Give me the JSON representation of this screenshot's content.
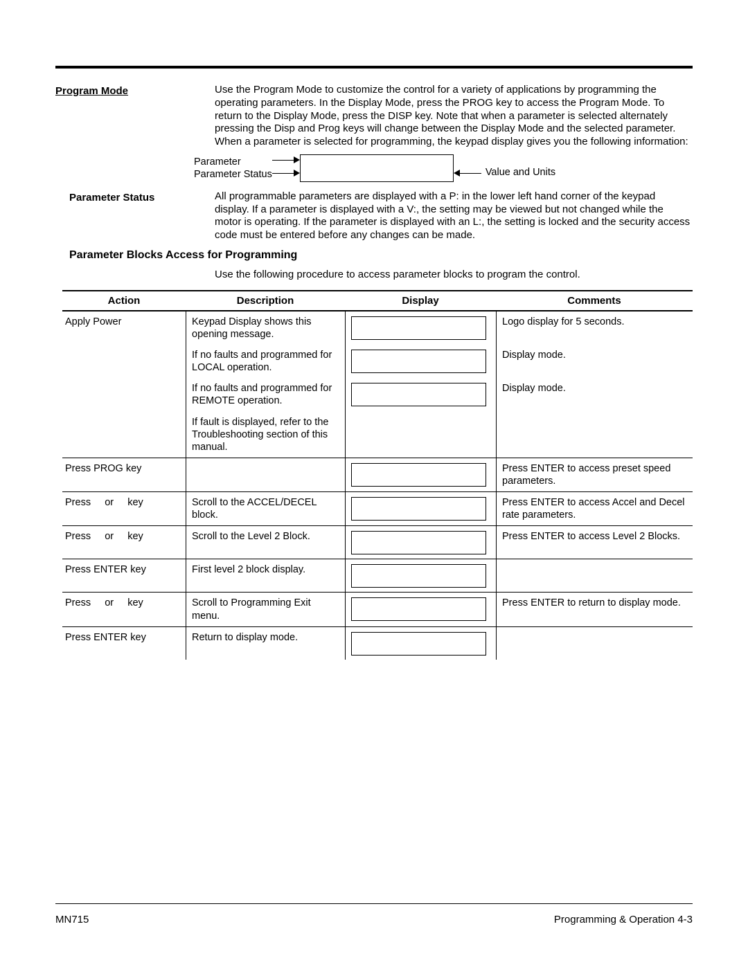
{
  "section1": {
    "heading": "Program Mode",
    "body": "Use the Program Mode to customize the control for a variety of applications by programming the operating parameters.  In the Display Mode, press the PROG key to access the Program Mode.  To return to the Display Mode, press the DISP key.  Note that when a parameter is selected alternately pressing the Disp and Prog keys will change between the Display Mode and the selected parameter.  When a parameter is selected for programming, the keypad display gives you the following information:"
  },
  "diagram": {
    "label1": "Parameter",
    "label2": "Parameter Status",
    "label3": "Value and Units"
  },
  "section2": {
    "heading": "Parameter Status",
    "body": "All programmable parameters are displayed with a P: in the lower left hand corner of the keypad display.  If a parameter is displayed with a V:, the setting may be viewed but not changed while the motor is operating.  If the parameter is displayed with an L:, the setting is locked and the security access code must be entered before any changes can be made."
  },
  "blocks": {
    "heading": "Parameter Blocks Access for Programming",
    "intro": "Use the following procedure to access parameter blocks to program the control."
  },
  "table": {
    "headers": {
      "action": "Action",
      "description": "Description",
      "display": "Display",
      "comments": "Comments"
    },
    "rows": [
      {
        "group_start": true,
        "action": "Apply Power",
        "description": "Keypad Display shows this opening message.",
        "show_display": true,
        "comments": "Logo display for 5 seconds."
      },
      {
        "group_start": false,
        "action": "",
        "description": "If no faults and programmed for LOCAL operation.",
        "show_display": true,
        "comments": "Display mode."
      },
      {
        "group_start": false,
        "action": "",
        "description": "If no faults and programmed for REMOTE operation.",
        "show_display": true,
        "comments": "Display mode."
      },
      {
        "group_start": false,
        "action": "",
        "description": "If fault is displayed, refer to the Troubleshooting section of this manual.",
        "show_display": false,
        "comments": ""
      },
      {
        "group_start": true,
        "action": "Press PROG key",
        "description": "",
        "show_display": true,
        "comments": "Press ENTER to access preset speed parameters."
      },
      {
        "group_start": true,
        "action": "Press     or     key",
        "description": "Scroll to the ACCEL/DECEL block.",
        "show_display": true,
        "comments": "Press ENTER to access Accel and Decel rate parameters."
      },
      {
        "group_start": true,
        "action": "Press     or     key",
        "description": "Scroll to the Level 2 Block.",
        "show_display": true,
        "comments": "Press ENTER to access Level 2 Blocks."
      },
      {
        "group_start": true,
        "action": "Press ENTER key",
        "description": "First level 2 block display.",
        "show_display": true,
        "comments": ""
      },
      {
        "group_start": true,
        "action": "Press     or     key",
        "description": "Scroll to Programming Exit menu.",
        "show_display": true,
        "comments": "Press ENTER to return to display mode."
      },
      {
        "group_start": true,
        "action": "Press ENTER key",
        "description": "Return to display mode.",
        "show_display": true,
        "comments": ""
      }
    ]
  },
  "footer": {
    "left": "MN715",
    "right": "Programming & Operation 4-3"
  }
}
